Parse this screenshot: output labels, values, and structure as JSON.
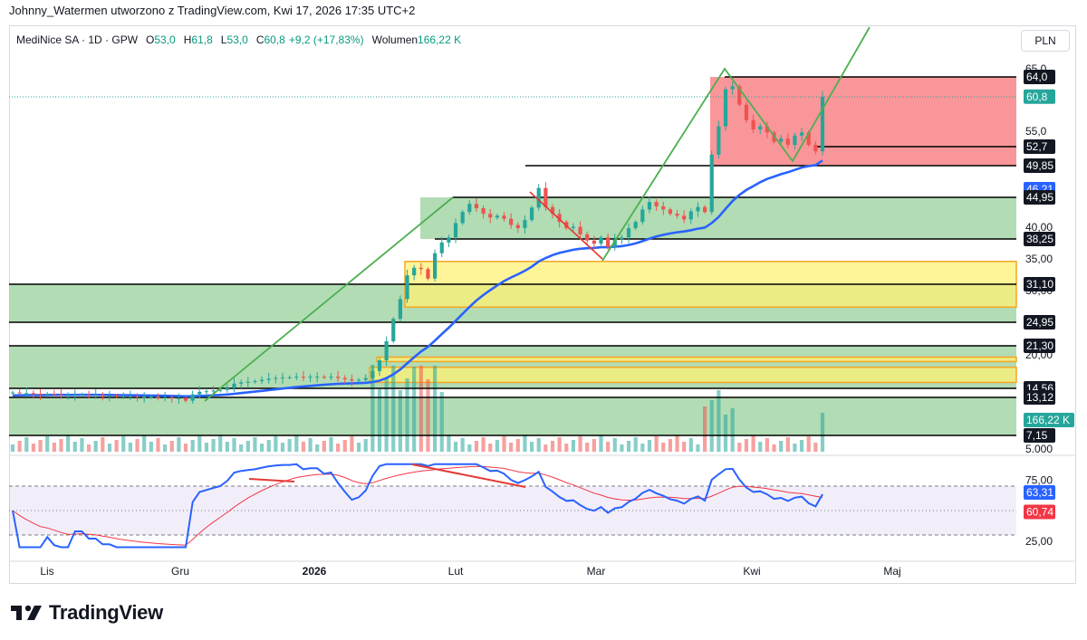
{
  "header": {
    "note": "Johnny_Watermen utworzono z TradingView.com, Kwi 17, 2026 17:35 UTC+2"
  },
  "legend": {
    "symbol": "MediNice SA · 1D · GPW",
    "o_label": "O",
    "o_value": "53,0",
    "h_label": "H",
    "h_value": "61,8",
    "l_label": "L",
    "l_value": "53,0",
    "c_label": "C",
    "c_value": "60,8",
    "change": "+9,2 (+17,83%)",
    "vol_label": "Wolumen",
    "vol_value": "166,22 K"
  },
  "currency_button": "PLN",
  "colors": {
    "up": "#26a69a",
    "down": "#ef5350",
    "ma_blue": "#2962ff",
    "zone_green": "#a5d6a7",
    "zone_yellow": "#fff176",
    "zone_red": "#f77c80",
    "trend_green": "#4caf50",
    "rsi_line": "#2962ff",
    "rsi_ma": "#f23645",
    "rsi_band": "#7e57c2"
  },
  "chart_data": {
    "type": "candlestick",
    "symbol": "MediNice SA",
    "timeframe": "1D",
    "exchange": "GPW",
    "currency": "PLN",
    "price_axis_ticks": [
      "65,0",
      "55,0",
      "40,00",
      "35,00",
      "30,00",
      "20,00",
      "5.000"
    ],
    "price_labels": [
      {
        "text": "64,0",
        "value": 64.0,
        "style": "level"
      },
      {
        "text": "60,8",
        "value": 60.8,
        "style": "last"
      },
      {
        "text": "52,7",
        "value": 52.7,
        "style": "level"
      },
      {
        "text": "49,85",
        "value": 49.85,
        "style": "level"
      },
      {
        "text": "46,21",
        "value": 46.21,
        "style": "ma"
      },
      {
        "text": "44,95",
        "value": 44.95,
        "style": "level"
      },
      {
        "text": "38,25",
        "value": 38.25,
        "style": "level"
      },
      {
        "text": "31,10",
        "value": 31.1,
        "style": "level"
      },
      {
        "text": "24,95",
        "value": 24.95,
        "style": "level"
      },
      {
        "text": "21,30",
        "value": 21.3,
        "style": "level"
      },
      {
        "text": "14,56",
        "value": 14.56,
        "style": "level"
      },
      {
        "text": "13,12",
        "value": 13.12,
        "style": "level"
      },
      {
        "text": "166,22 K",
        "value": 166.22,
        "style": "volume"
      },
      {
        "text": "7,15",
        "value": 7.15,
        "style": "level"
      }
    ],
    "x_axis_labels": [
      "Lis",
      "Gru",
      "2026",
      "Lut",
      "Mar",
      "Kwi",
      "Maj"
    ],
    "last_ohlc": {
      "open": 53.0,
      "high": 61.8,
      "low": 53.0,
      "close": 60.8
    },
    "last_volume": "166,22 K",
    "moving_average_last": 46.21,
    "horizontal_levels": [
      64.0,
      52.7,
      49.85,
      44.95,
      38.25,
      31.1,
      24.95,
      21.3,
      14.56,
      13.12,
      7.15
    ],
    "closes_approx": [
      13.9,
      13.8,
      13.8,
      13.7,
      13.6,
      13.7,
      13.6,
      13.5,
      13.5,
      13.6,
      13.6,
      13.5,
      13.5,
      13.4,
      13.4,
      13.3,
      13.3,
      13.3,
      13.2,
      13.2,
      13.2,
      13.1,
      13.1,
      13.0,
      13.0,
      12.6,
      13.6,
      14.0,
      14.1,
      14.2,
      14.3,
      14.6,
      15.3,
      15.5,
      15.6,
      15.7,
      15.9,
      16.1,
      16.2,
      16.3,
      16.3,
      16.4,
      16.3,
      16.4,
      16.4,
      16.3,
      16.4,
      16.2,
      16.0,
      15.8,
      15.9,
      16.2,
      17.3,
      19.0,
      22.0,
      25.5,
      28.7,
      32.5,
      33.7,
      33.5,
      32.0,
      36.0,
      37.7,
      38.5,
      40.8,
      42.6,
      43.9,
      43.2,
      42.3,
      41.7,
      42.0,
      41.5,
      40.5,
      40.0,
      41.3,
      43.3,
      46.4,
      43.4,
      42.3,
      41.0,
      40.0,
      40.2,
      39.0,
      38.0,
      37.5,
      38.5,
      37.0,
      38.2,
      38.5,
      40.0,
      41.0,
      43.0,
      44.2,
      43.5,
      43.0,
      42.3,
      42.0,
      41.4,
      42.7,
      43.4,
      42.6,
      51.5,
      56.0,
      62.0,
      62.5,
      59.5,
      57.0,
      55.5,
      56.0,
      55.0,
      53.5,
      54.0,
      53.0,
      54.5,
      55.0,
      53.0,
      52.0,
      60.8
    ],
    "rsi": {
      "axis_ticks": [
        "75,00",
        "25,00"
      ],
      "value": 63.31,
      "value_label": "63,31",
      "ma_value": 60.74,
      "ma_label": "60,74",
      "upper_band": 70,
      "lower_band": 30
    }
  }
}
